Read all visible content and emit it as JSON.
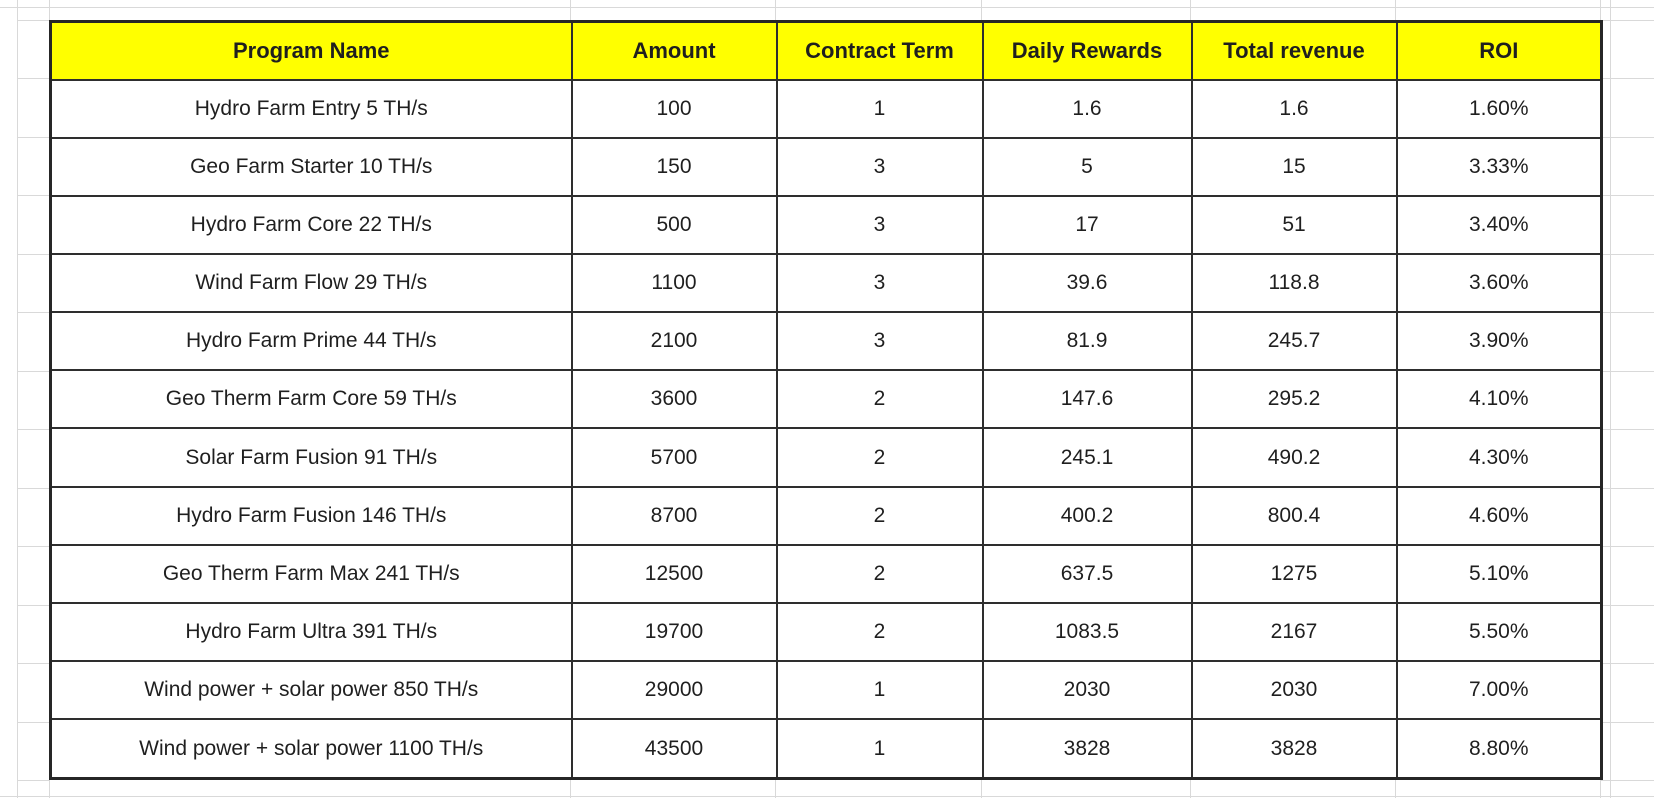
{
  "table": {
    "columns": [
      "Program Name",
      "Amount",
      "Contract Term",
      "Daily Rewards",
      "Total revenue",
      "ROI"
    ],
    "rows": [
      [
        "Hydro Farm Entry 5 TH/s",
        "100",
        "1",
        "1.6",
        "1.6",
        "1.60%"
      ],
      [
        "Geo Farm Starter 10 TH/s",
        "150",
        "3",
        "5",
        "15",
        "3.33%"
      ],
      [
        "Hydro Farm Core 22 TH/s",
        "500",
        "3",
        "17",
        "51",
        "3.40%"
      ],
      [
        "Wind Farm Flow 29 TH/s",
        "1100",
        "3",
        "39.6",
        "118.8",
        "3.60%"
      ],
      [
        "Hydro Farm Prime 44 TH/s",
        "2100",
        "3",
        "81.9",
        "245.7",
        "3.90%"
      ],
      [
        "Geo Therm Farm Core 59 TH/s",
        "3600",
        "2",
        "147.6",
        "295.2",
        "4.10%"
      ],
      [
        "Solar Farm Fusion 91 TH/s",
        "5700",
        "2",
        "245.1",
        "490.2",
        "4.30%"
      ],
      [
        "Hydro Farm Fusion 146 TH/s",
        "8700",
        "2",
        "400.2",
        "800.4",
        "4.60%"
      ],
      [
        "Geo Therm Farm Max 241 TH/s",
        "12500",
        "2",
        "637.5",
        "1275",
        "5.10%"
      ],
      [
        "Hydro Farm Ultra 391 TH/s",
        "19700",
        "2",
        "1083.5",
        "2167",
        "5.50%"
      ],
      [
        "Wind power + solar power 850 TH/s",
        "29000",
        "1",
        "2030",
        "2030",
        "7.00%"
      ],
      [
        "Wind power + solar power 1100 TH/s",
        "43500",
        "1",
        "3828",
        "3828",
        "8.80%"
      ]
    ]
  },
  "chart_data": {
    "type": "table",
    "columns": [
      "Program Name",
      "Amount",
      "Contract Term",
      "Daily Rewards",
      "Total revenue",
      "ROI"
    ],
    "rows": [
      [
        "Hydro Farm Entry 5 TH/s",
        100,
        1,
        1.6,
        1.6,
        "1.60%"
      ],
      [
        "Geo Farm Starter 10 TH/s",
        150,
        3,
        5,
        15,
        "3.33%"
      ],
      [
        "Hydro Farm Core 22 TH/s",
        500,
        3,
        17,
        51,
        "3.40%"
      ],
      [
        "Wind Farm Flow 29 TH/s",
        1100,
        3,
        39.6,
        118.8,
        "3.60%"
      ],
      [
        "Hydro Farm Prime 44 TH/s",
        2100,
        3,
        81.9,
        245.7,
        "3.90%"
      ],
      [
        "Geo Therm Farm Core 59 TH/s",
        3600,
        2,
        147.6,
        295.2,
        "4.10%"
      ],
      [
        "Solar Farm Fusion 91 TH/s",
        5700,
        2,
        245.1,
        490.2,
        "4.30%"
      ],
      [
        "Hydro Farm Fusion 146 TH/s",
        8700,
        2,
        400.2,
        800.4,
        "4.60%"
      ],
      [
        "Geo Therm Farm Max 241 TH/s",
        12500,
        2,
        637.5,
        1275,
        "5.10%"
      ],
      [
        "Hydro Farm Ultra 391 TH/s",
        19700,
        2,
        1083.5,
        2167,
        "5.50%"
      ],
      [
        "Wind power + solar power 850 TH/s",
        29000,
        1,
        2030,
        2030,
        "7.00%"
      ],
      [
        "Wind power + solar power 1100 TH/s",
        43500,
        1,
        3828,
        3828,
        "8.80%"
      ]
    ]
  },
  "colors": {
    "header_bg": "#FFFF00",
    "table_border": "#2E2E2E",
    "sheet_gridline": "#D9D9D9",
    "text": "#1F1F1F"
  }
}
